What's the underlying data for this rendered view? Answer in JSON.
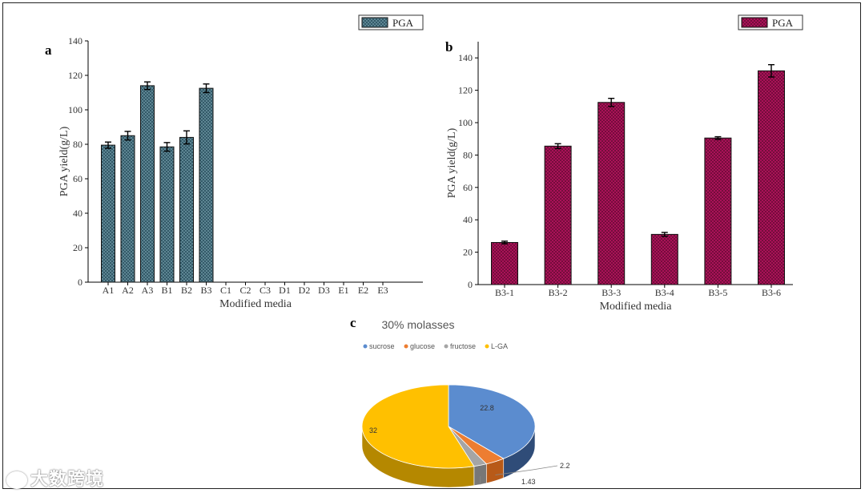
{
  "chart_data": [
    {
      "type": "bar",
      "panel_label": "a",
      "legend": "PGA",
      "ylabel": "PGA yield(g/L)",
      "xlabel": "Modified media",
      "ylim": [
        0,
        140
      ],
      "yticks": [
        0,
        20,
        40,
        60,
        80,
        100,
        120,
        140
      ],
      "categories": [
        "A1",
        "A2",
        "A3",
        "B1",
        "B2",
        "B3",
        "C1",
        "C2",
        "C3",
        "D1",
        "D2",
        "D3",
        "E1",
        "E2",
        "E3"
      ],
      "values": [
        79.5,
        85,
        114,
        78.5,
        84,
        112.5,
        null,
        null,
        null,
        null,
        null,
        null,
        null,
        null,
        null
      ],
      "errors": [
        1.8,
        2.5,
        2.2,
        2.5,
        3.8,
        2.5,
        null,
        null,
        null,
        null,
        null,
        null,
        null,
        null,
        null
      ],
      "color": "#2b5160",
      "legend_position": "top-right"
    },
    {
      "type": "bar",
      "panel_label": "b",
      "legend": "PGA",
      "ylabel": "PGA yield(g/L)",
      "xlabel": "Modified media",
      "ylim": [
        0,
        150
      ],
      "yticks": [
        0,
        20,
        40,
        60,
        80,
        100,
        120,
        140
      ],
      "categories": [
        "B3-1",
        "B3-2",
        "B3-3",
        "B3-4",
        "B3-5",
        "B3-6"
      ],
      "values": [
        26,
        85.5,
        112.5,
        31,
        90.5,
        132
      ],
      "errors": [
        0.8,
        1.5,
        2.5,
        1.2,
        0.8,
        3.8
      ],
      "color": "#b5135d",
      "legend_position": "top-right"
    },
    {
      "type": "pie",
      "panel_label": "c",
      "title": "30% molasses",
      "categories": [
        "sucrose",
        "glucose",
        "fructose",
        "L-GA"
      ],
      "values": [
        22.8,
        2.2,
        1.43,
        32
      ],
      "data_labels": [
        "22.8",
        "2.2",
        "1.43",
        "32"
      ],
      "colors": [
        "#5b8ccf",
        "#ed7d31",
        "#a5a5a5",
        "#ffc000"
      ],
      "legend_position": "top"
    }
  ],
  "watermark": "大数跨境"
}
